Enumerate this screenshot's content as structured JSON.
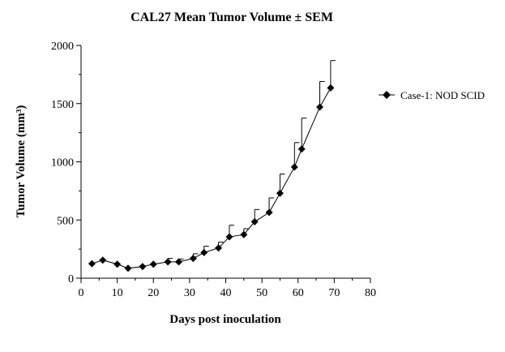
{
  "chart_data": {
    "type": "line",
    "title": "CAL27 Mean Tumor Volume ± SEM",
    "xlabel": "Days post inoculation",
    "ylabel": "Tumor Volume (mm³)",
    "xlim": [
      0,
      80
    ],
    "ylim": [
      0,
      2000
    ],
    "xticks": [
      "0",
      "10",
      "20",
      "30",
      "40",
      "50",
      "60",
      "70",
      "80"
    ],
    "yticks": [
      "0",
      "500",
      "1000",
      "1500",
      "2000"
    ],
    "grid": false,
    "legend_position": "right",
    "series": [
      {
        "name": "Case-1: NOD SCID",
        "marker": "diamond",
        "color": "#000000",
        "x": [
          3,
          6,
          10,
          13,
          17,
          20,
          24,
          27,
          31,
          34,
          38,
          41,
          45,
          48,
          52,
          55,
          59,
          61,
          66,
          69
        ],
        "y": [
          125,
          155,
          120,
          85,
          100,
          120,
          140,
          140,
          170,
          220,
          260,
          355,
          375,
          485,
          565,
          730,
          955,
          1110,
          1470,
          1635
        ],
        "sem": [
          0,
          0,
          0,
          0,
          0,
          0,
          30,
          25,
          40,
          55,
          50,
          100,
          50,
          105,
          125,
          165,
          210,
          265,
          220,
          235
        ]
      }
    ]
  }
}
